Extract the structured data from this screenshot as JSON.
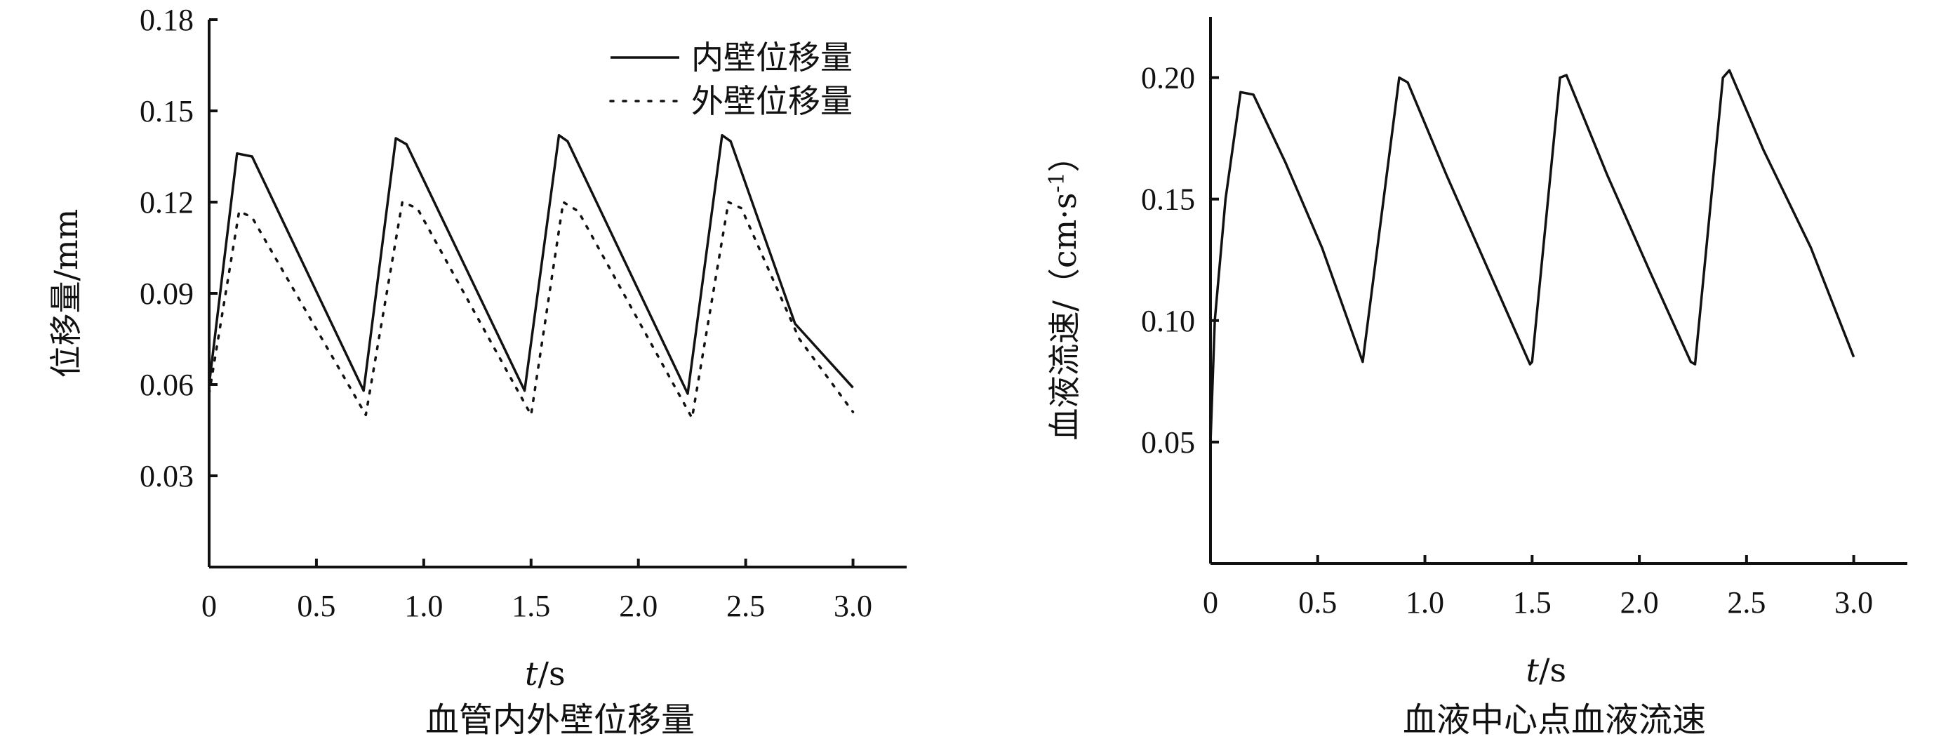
{
  "chart_data": [
    {
      "type": "line",
      "caption": "血管内外壁位移量",
      "xlabel_italic": "t",
      "xlabel_unit": "/s",
      "ylabel": "位移量/mm",
      "xlim": [
        0,
        3.25
      ],
      "ylim": [
        0,
        0.18
      ],
      "xticks": [
        0,
        0.5,
        1.0,
        1.5,
        2.0,
        2.5,
        3.0
      ],
      "xtick_labels": [
        "0",
        "0.5",
        "1.0",
        "1.5",
        "2.0",
        "2.5",
        "3.0"
      ],
      "yticks": [
        0.03,
        0.06,
        0.09,
        0.12,
        0.15,
        0.18
      ],
      "ytick_labels": [
        "0.03",
        "0.06",
        "0.09",
        "0.12",
        "0.15",
        "0.18"
      ],
      "legend_position": "top-right",
      "series": [
        {
          "name": "内壁位移量",
          "style": "solid",
          "x": [
            0,
            0.13,
            0.2,
            0.72,
            0.87,
            0.92,
            1.47,
            1.63,
            1.67,
            2.23,
            2.39,
            2.43,
            2.73,
            3.0
          ],
          "y": [
            0.06,
            0.136,
            0.135,
            0.058,
            0.141,
            0.139,
            0.058,
            0.142,
            0.14,
            0.057,
            0.142,
            0.14,
            0.08,
            0.059
          ]
        },
        {
          "name": "外壁位移量",
          "style": "dotted",
          "x": [
            0,
            0.14,
            0.2,
            0.73,
            0.9,
            0.97,
            1.5,
            1.65,
            1.72,
            2.25,
            2.42,
            2.48,
            2.75,
            3.0
          ],
          "y": [
            0.057,
            0.117,
            0.115,
            0.05,
            0.12,
            0.118,
            0.05,
            0.12,
            0.117,
            0.049,
            0.12,
            0.118,
            0.075,
            0.051
          ]
        }
      ]
    },
    {
      "type": "line",
      "caption": "血液中心点血液流速",
      "xlabel_italic": "t",
      "xlabel_unit": "/s",
      "ylabel": "血液流速/（cm·s",
      "ylabel_sup": "-1",
      "ylabel_end": "）",
      "xlim": [
        0,
        3.25
      ],
      "ylim": [
        0,
        0.225
      ],
      "xticks": [
        0,
        0.5,
        1.0,
        1.5,
        2.0,
        2.5,
        3.0
      ],
      "xtick_labels": [
        "0",
        "0.5",
        "1.0",
        "1.5",
        "2.0",
        "2.5",
        "3.0"
      ],
      "yticks": [
        0.05,
        0.1,
        0.15,
        0.2
      ],
      "ytick_labels": [
        "0.05",
        "0.10",
        "0.15",
        "0.20"
      ],
      "series": [
        {
          "style": "solid",
          "x": [
            0,
            0.02,
            0.07,
            0.14,
            0.2,
            0.35,
            0.52,
            0.71,
            0.88,
            0.92,
            1.1,
            1.3,
            1.49,
            1.5,
            1.63,
            1.66,
            1.85,
            2.05,
            2.24,
            2.26,
            2.39,
            2.42,
            2.58,
            2.8,
            3.0
          ],
          "y": [
            0.05,
            0.1,
            0.15,
            0.194,
            0.193,
            0.165,
            0.13,
            0.083,
            0.2,
            0.198,
            0.16,
            0.12,
            0.082,
            0.083,
            0.2,
            0.201,
            0.16,
            0.12,
            0.083,
            0.082,
            0.2,
            0.203,
            0.17,
            0.13,
            0.085
          ]
        }
      ]
    }
  ]
}
